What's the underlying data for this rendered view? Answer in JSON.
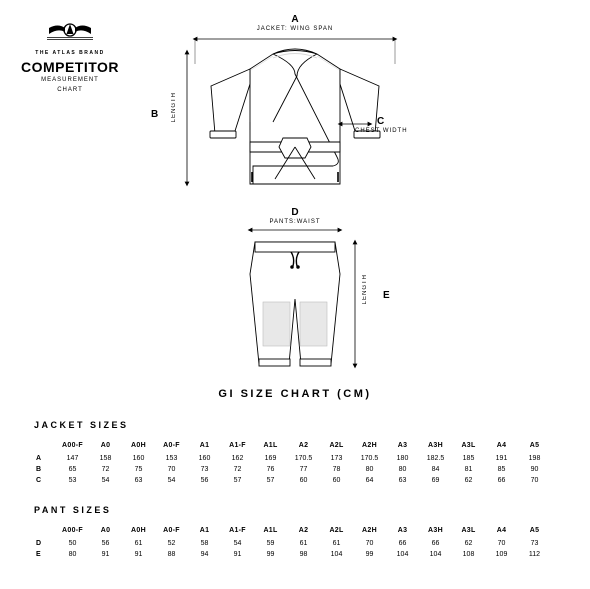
{
  "brand": {
    "tagline": "THE ATLAS BRAND",
    "title": "COMPETITOR",
    "sub1": "MEASUREMENT",
    "sub2": "CHART"
  },
  "labels": {
    "A": "A",
    "A_text": "JACKET: WING SPAN",
    "B": "B",
    "B_text": "LENGTH",
    "C": "C",
    "C_text": "CHEST WIDTH",
    "D": "D",
    "D_text": "PANTS:WAIST",
    "E": "E",
    "E_text": "LENGTH"
  },
  "chart_title": "GI SIZE CHART (CM)",
  "sections": {
    "jacket": "JACKET SIZES",
    "pant": "PANT SIZES"
  },
  "headers": [
    "A00-F",
    "A0",
    "A0H",
    "A0-F",
    "A1",
    "A1-F",
    "A1L",
    "A2",
    "A2L",
    "A2H",
    "A3",
    "A3H",
    "A3L",
    "A4",
    "A5"
  ],
  "jacket_rows": [
    {
      "label": "A",
      "vals": [
        "147",
        "158",
        "160",
        "153",
        "160",
        "162",
        "169",
        "170.5",
        "173",
        "170.5",
        "180",
        "182.5",
        "185",
        "191",
        "198"
      ]
    },
    {
      "label": "B",
      "vals": [
        "65",
        "72",
        "75",
        "70",
        "73",
        "72",
        "76",
        "77",
        "78",
        "80",
        "80",
        "84",
        "81",
        "85",
        "90"
      ]
    },
    {
      "label": "C",
      "vals": [
        "53",
        "54",
        "63",
        "54",
        "56",
        "57",
        "57",
        "60",
        "60",
        "64",
        "63",
        "69",
        "62",
        "66",
        "70"
      ]
    }
  ],
  "pant_rows": [
    {
      "label": "D",
      "vals": [
        "50",
        "56",
        "61",
        "52",
        "58",
        "54",
        "59",
        "61",
        "61",
        "70",
        "66",
        "66",
        "62",
        "70",
        "73"
      ]
    },
    {
      "label": "E",
      "vals": [
        "80",
        "91",
        "91",
        "88",
        "94",
        "91",
        "99",
        "98",
        "104",
        "99",
        "104",
        "104",
        "108",
        "109",
        "112"
      ]
    }
  ],
  "colors": {
    "stroke": "#000000",
    "light": "#d9d9d9",
    "bg": "#ffffff"
  }
}
